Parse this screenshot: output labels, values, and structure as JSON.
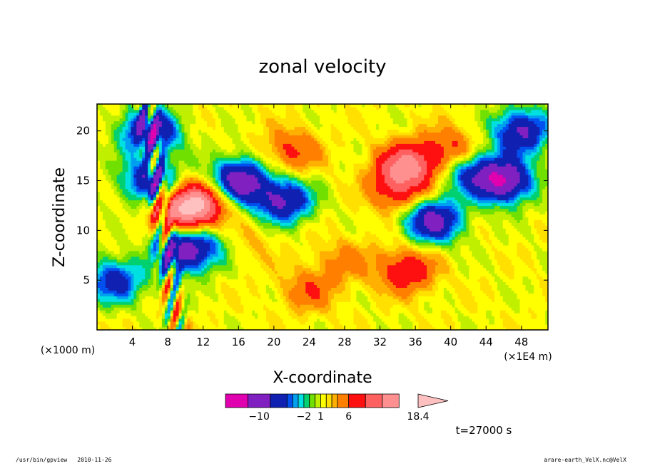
{
  "chart_data": {
    "type": "heatmap",
    "title": "zonal velocity",
    "xlabel": "X-coordinate",
    "ylabel": "Z-coordinate",
    "x_unit": "(×1E4 m)",
    "y_unit": "(×1000 m)",
    "xlim": [
      0,
      51
    ],
    "ylim": [
      0,
      22.7
    ],
    "x_ticks": [
      4,
      8,
      12,
      16,
      20,
      24,
      28,
      32,
      36,
      40,
      44,
      48
    ],
    "y_ticks": [
      5,
      10,
      15,
      20
    ],
    "x_tick_labels": [
      "4",
      "8",
      "12",
      "16",
      "20",
      "24",
      "28",
      "32",
      "36",
      "40",
      "44",
      "48"
    ],
    "y_tick_labels": [
      "5",
      "10",
      "15",
      "20"
    ],
    "time_label": "t=27000 s",
    "colorbar": {
      "levels": [
        -16,
        -12,
        -8,
        -5,
        -4,
        -3,
        -2,
        -1,
        0,
        1,
        2,
        3,
        4,
        6,
        9,
        12,
        15,
        18.4
      ],
      "colors": [
        "#e000b0",
        "#8020c0",
        "#1020b0",
        "#0050f0",
        "#00a0f0",
        "#00e0e0",
        "#00d070",
        "#70e000",
        "#c0f000",
        "#ffff00",
        "#ffe000",
        "#ffb000",
        "#ff8000",
        "#ff1010",
        "#ff6060",
        "#ff9090",
        "#ffc0c0"
      ],
      "labels": [
        "−10",
        "−2",
        "1",
        "6",
        "18.4"
      ]
    },
    "features": [
      {
        "x": 10,
        "z": 12,
        "value": 12
      },
      {
        "x": 12,
        "z": 13,
        "value": 7
      },
      {
        "x": 16,
        "z": 9,
        "value": 6
      },
      {
        "x": 22,
        "z": 18,
        "value": 5
      },
      {
        "x": 35,
        "z": 16.5,
        "value": 11
      },
      {
        "x": 35,
        "z": 6,
        "value": 7
      },
      {
        "x": 34,
        "z": 14,
        "value": 6
      },
      {
        "x": 40,
        "z": 18,
        "value": 6
      },
      {
        "x": 10,
        "z": 8,
        "value": -12
      },
      {
        "x": 6,
        "z": 20,
        "value": -11
      },
      {
        "x": 6,
        "z": 15,
        "value": -9
      },
      {
        "x": 15,
        "z": 9,
        "value": -6
      },
      {
        "x": 16,
        "z": 15,
        "value": -12
      },
      {
        "x": 21,
        "z": 13,
        "value": -10
      },
      {
        "x": 38,
        "z": 11,
        "value": -11
      },
      {
        "x": 46,
        "z": 15,
        "value": -13
      },
      {
        "x": 48,
        "z": 20,
        "value": -10
      },
      {
        "x": 42,
        "z": 16,
        "value": -7
      },
      {
        "x": 2,
        "z": 5,
        "value": -8
      },
      {
        "x": 24,
        "z": 4,
        "value": 4
      },
      {
        "x": 28,
        "z": 7,
        "value": 3
      }
    ]
  },
  "footer": {
    "program": "/usr/bin/gpview",
    "date": "2010-11-26",
    "file": "arare-earth_VelX.nc@VelX"
  }
}
